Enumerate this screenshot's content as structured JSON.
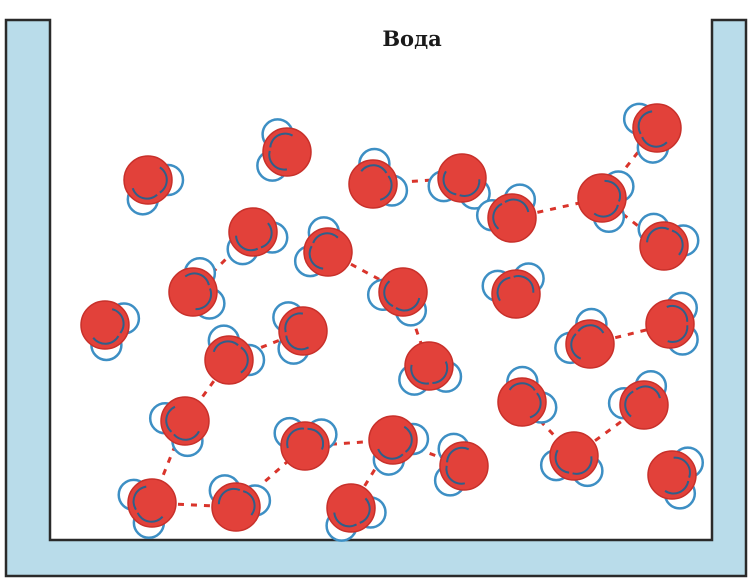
{
  "title": "Вода"
}
